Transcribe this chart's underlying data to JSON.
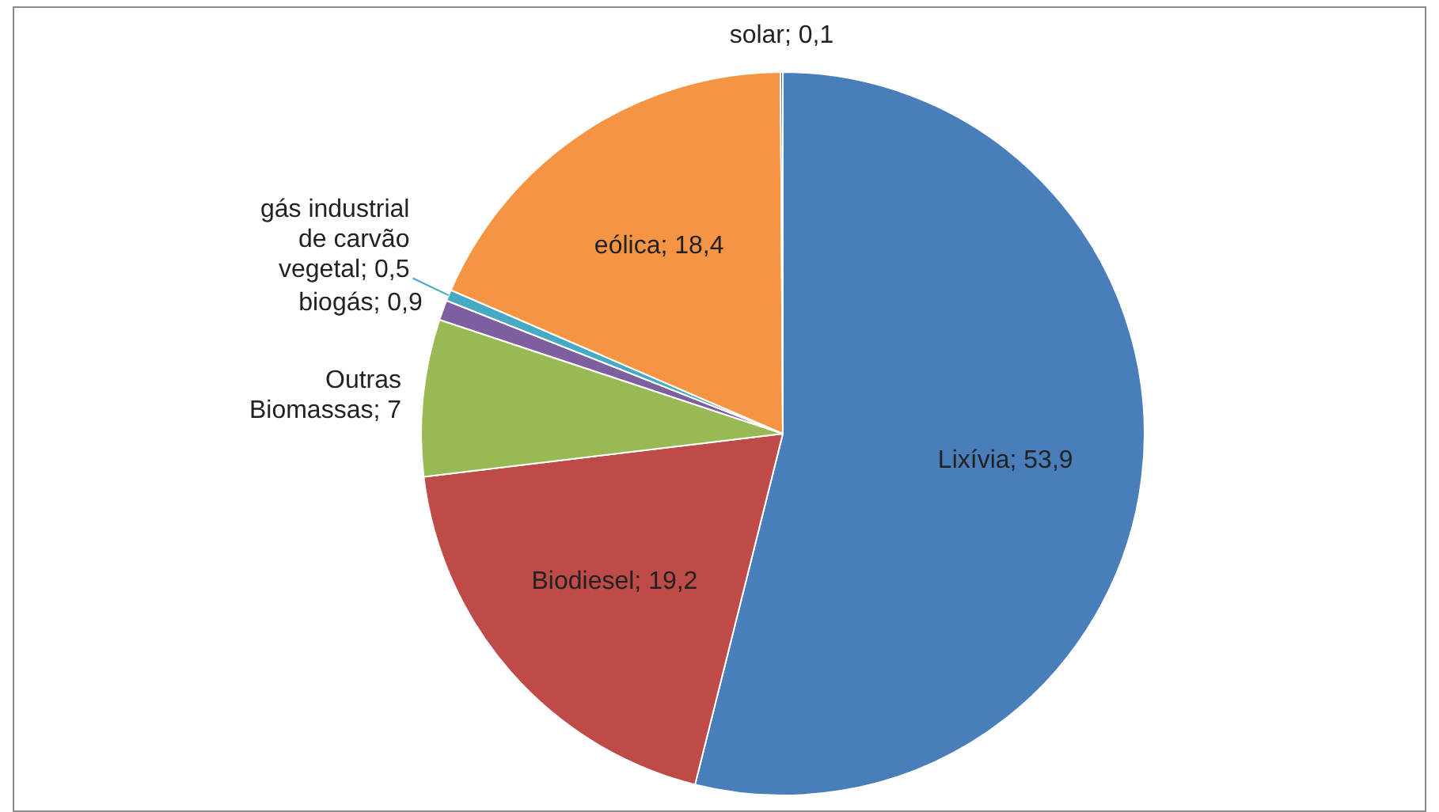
{
  "chart_data": {
    "type": "pie",
    "categories": [
      "Lixívia",
      "Biodiesel",
      "Outras Biomassas",
      "biogás",
      "gás industrial de carvão vegetal",
      "eólica",
      "solar"
    ],
    "values": [
      53.9,
      19.2,
      7,
      0.9,
      0.5,
      18.4,
      0.1
    ],
    "value_labels": [
      "53,9",
      "19,2",
      "7",
      "0,9",
      "0,5",
      "18,4",
      "0,1"
    ],
    "colors": [
      "#4a7ebb",
      "#be4b48",
      "#98b954",
      "#7d5fa0",
      "#46aac5",
      "#f59443",
      "#2c4d75"
    ],
    "legend": false
  }
}
